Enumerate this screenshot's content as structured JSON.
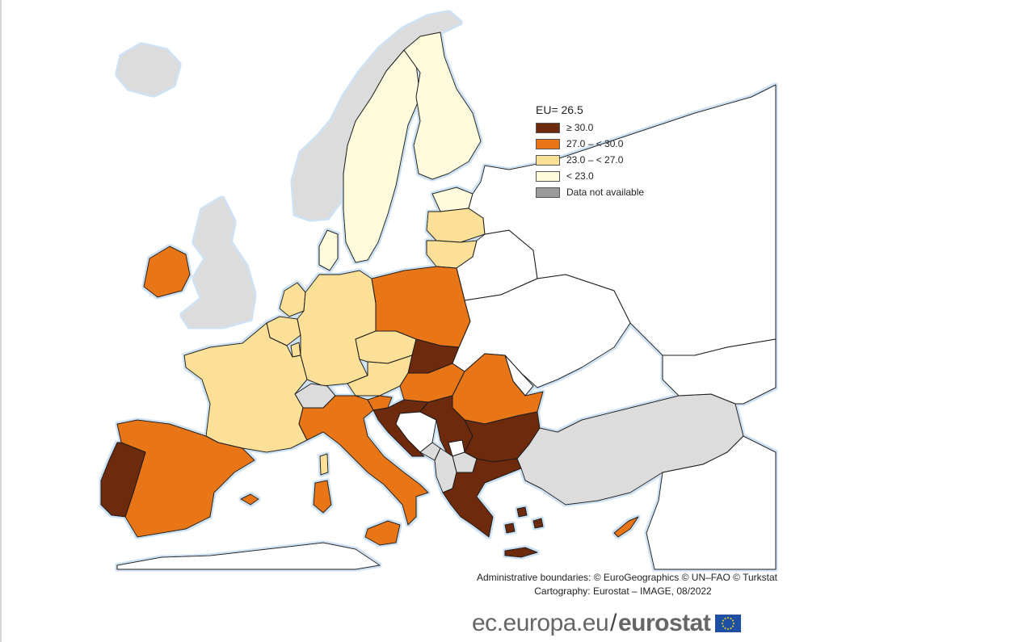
{
  "legend": {
    "title": "EU= 26.5",
    "items": [
      {
        "label": "≥ 30.0",
        "color": "#6e2a0c"
      },
      {
        "label": "27.0 – < 30.0",
        "color": "#e87418"
      },
      {
        "label": "23.0 – < 27.0",
        "color": "#fde097"
      },
      {
        "label": "< 23.0",
        "color": "#fffbdc"
      },
      {
        "label": "Data not available",
        "color": "#9a9a9a"
      }
    ]
  },
  "colors": {
    "non_eu": "#dcdcdc",
    "sea": "#ffffff",
    "coast_glow": "#dbe9f5",
    "border": "#1a1a1a"
  },
  "credits": {
    "line1": "Administrative boundaries: © EuroGeographics © UN–FAO © Turkstat",
    "line2": "Cartography: Eurostat – IMAGE, 08/2022"
  },
  "brand": {
    "domain": "ec.europa.eu",
    "separator": "/",
    "name": "eurostat"
  }
}
